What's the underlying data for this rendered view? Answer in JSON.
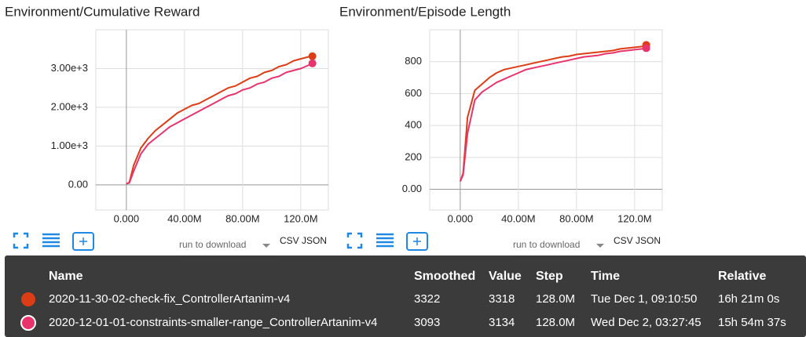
{
  "chart_data": [
    {
      "type": "line",
      "title": "Environment/Cumulative Reward",
      "x": [
        0,
        2000000,
        5000000,
        10000000,
        15000000,
        20000000,
        25000000,
        30000000,
        35000000,
        40000000,
        45000000,
        50000000,
        55000000,
        60000000,
        65000000,
        70000000,
        75000000,
        80000000,
        85000000,
        90000000,
        95000000,
        100000000,
        105000000,
        110000000,
        115000000,
        120000000,
        125000000,
        128000000
      ],
      "series": [
        {
          "color": "#dd3d14",
          "values": [
            30,
            60,
            500,
            950,
            1200,
            1400,
            1550,
            1700,
            1850,
            1950,
            2050,
            2100,
            2200,
            2300,
            2400,
            2500,
            2550,
            2650,
            2750,
            2800,
            2900,
            2950,
            3050,
            3100,
            3200,
            3250,
            3300,
            3318
          ]
        },
        {
          "color": "#e8336d",
          "values": [
            30,
            50,
            350,
            800,
            1050,
            1200,
            1350,
            1500,
            1600,
            1700,
            1800,
            1900,
            2000,
            2100,
            2200,
            2300,
            2350,
            2450,
            2500,
            2600,
            2650,
            2750,
            2800,
            2900,
            2950,
            3000,
            3080,
            3134
          ]
        }
      ],
      "xlim": [
        -21000000,
        139000000
      ],
      "xticks": [
        {
          "value": 0,
          "label": "0.000"
        },
        {
          "value": 40000000,
          "label": "40.00M"
        },
        {
          "value": 80000000,
          "label": "80.00M"
        },
        {
          "value": 120000000,
          "label": "120.0M"
        }
      ],
      "ylim": [
        -650,
        4000
      ],
      "yticks": [
        {
          "value": 0,
          "label": "0.00"
        },
        {
          "value": 1000,
          "label": "1.00e+3"
        },
        {
          "value": 2000,
          "label": "2.00e+3"
        },
        {
          "value": 3000,
          "label": "3.00e+3"
        }
      ],
      "grid": true
    },
    {
      "type": "line",
      "title": "Environment/Episode Length",
      "x": [
        0,
        2000000,
        5000000,
        10000000,
        15000000,
        20000000,
        25000000,
        30000000,
        35000000,
        40000000,
        45000000,
        50000000,
        55000000,
        60000000,
        65000000,
        70000000,
        75000000,
        80000000,
        85000000,
        90000000,
        95000000,
        100000000,
        105000000,
        110000000,
        115000000,
        120000000,
        125000000,
        128000000
      ],
      "series": [
        {
          "color": "#dd3d14",
          "values": [
            50,
            100,
            450,
            620,
            660,
            700,
            730,
            750,
            760,
            770,
            780,
            790,
            800,
            810,
            820,
            830,
            835,
            845,
            850,
            855,
            860,
            865,
            870,
            880,
            885,
            890,
            895,
            905
          ]
        },
        {
          "color": "#e8336d",
          "values": [
            50,
            90,
            350,
            560,
            610,
            640,
            670,
            690,
            710,
            730,
            750,
            760,
            770,
            780,
            790,
            800,
            810,
            820,
            830,
            835,
            840,
            850,
            855,
            865,
            870,
            875,
            880,
            885
          ]
        }
      ],
      "xlim": [
        -21000000,
        139000000
      ],
      "xticks": [
        {
          "value": 0,
          "label": "0.000"
        },
        {
          "value": 40000000,
          "label": "40.00M"
        },
        {
          "value": 80000000,
          "label": "80.00M"
        },
        {
          "value": 120000000,
          "label": "120.0M"
        }
      ],
      "ylim": [
        -130,
        1000
      ],
      "yticks": [
        {
          "value": 0,
          "label": "0.00"
        },
        200,
        400,
        600,
        800
      ],
      "grid": true
    }
  ],
  "downloads": [
    {
      "placeholder": "run to download",
      "csv": "CSV",
      "json": "JSON"
    },
    {
      "placeholder": "run to download",
      "csv": "CSV",
      "json": "JSON"
    }
  ],
  "table": {
    "header": [
      "Name",
      "Smoothed",
      "Value",
      "Step",
      "Time",
      "Relative"
    ],
    "rows": [
      {
        "color": "#dd3d14",
        "cells": [
          "2020-11-30-02-check-fix_ControllerArtanim-v4",
          "3322",
          "3318",
          "128.0M",
          "Tue Dec 1, 09:10:50",
          "16h 21m 0s"
        ]
      },
      {
        "color": "#e8336d",
        "cells": [
          "2020-12-01-01-constraints-smaller-range_ControllerArtanim-v4",
          "3093",
          "3134",
          "128.0M",
          "Wed Dec 2, 03:27:45",
          "15h 54m 37s"
        ]
      }
    ]
  }
}
